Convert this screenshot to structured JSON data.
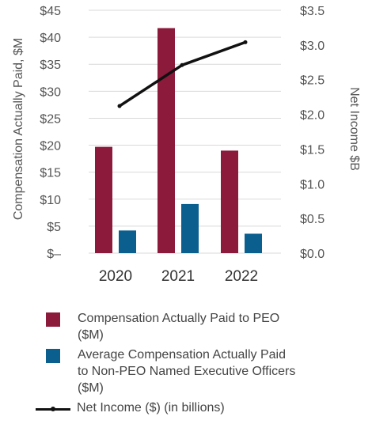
{
  "chart_data": {
    "type": "bar",
    "categories": [
      "2020",
      "2021",
      "2022"
    ],
    "series": [
      {
        "name": "Compensation Actually Paid to PEO ($M)",
        "values": [
          19.7,
          41.7,
          19.0
        ],
        "color": "#8b1a3b",
        "axis": "left"
      },
      {
        "name": "Average Compensation Actually Paid to Non-PEO Named Executive Officers ($M)",
        "values": [
          4.2,
          9.1,
          3.6
        ],
        "color": "#0a5f8f",
        "axis": "left"
      },
      {
        "name": "Net Income ($) (in billions)",
        "values": [
          2.12,
          2.71,
          3.04
        ],
        "color": "#111111",
        "axis": "right",
        "type": "line"
      }
    ],
    "ylabel": "Compensation Actually Paid, $M",
    "y2label": "Net Income $B",
    "ylim": [
      0,
      45
    ],
    "y2lim": [
      0,
      3.5
    ],
    "yticks": [
      "$–",
      "$5",
      "$10",
      "$15",
      "$20",
      "$25",
      "$30",
      "$35",
      "$40",
      "$45"
    ],
    "yticks_values": [
      0,
      5,
      10,
      15,
      20,
      25,
      30,
      35,
      40,
      45
    ],
    "y2ticks": [
      "$0.0",
      "$0.5",
      "$1.0",
      "$1.5",
      "$2.0",
      "$2.5",
      "$3.0",
      "$3.5"
    ],
    "y2ticks_values": [
      0,
      0.5,
      1.0,
      1.5,
      2.0,
      2.5,
      3.0,
      3.5
    ],
    "grid": true,
    "legend_position": "bottom"
  },
  "legend": {
    "items": [
      {
        "label": "Compensation Actually Paid to PEO ($M)"
      },
      {
        "label": "Average Compensation Actually Paid to Non-PEO Named Executive Officers ($M)"
      },
      {
        "label": "Net Income ($) (in billions)"
      }
    ]
  }
}
